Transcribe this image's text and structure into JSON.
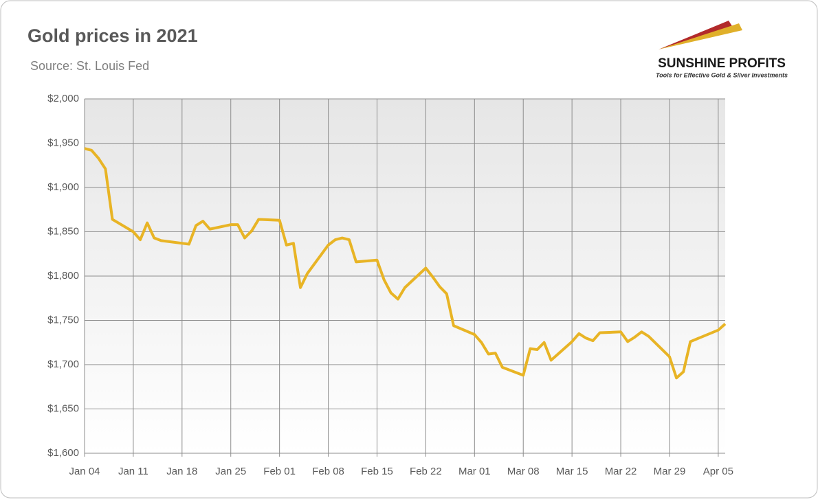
{
  "chart_data": {
    "type": "line",
    "title": "Gold prices in 2021",
    "subtitle": "Source: St. Louis Fed",
    "x": [
      0,
      1,
      2,
      3,
      4,
      7,
      8,
      9,
      10,
      11,
      15,
      16,
      17,
      18,
      21,
      22,
      23,
      24,
      25,
      28,
      29,
      30,
      31,
      32,
      35,
      36,
      37,
      38,
      39,
      42,
      43,
      44,
      45,
      46,
      49,
      50,
      51,
      52,
      53,
      56,
      57,
      58,
      59,
      60,
      63,
      64,
      65,
      66,
      67,
      70,
      71,
      72,
      73,
      74,
      77,
      78,
      79,
      80,
      81,
      84,
      85,
      86,
      87,
      91,
      92
    ],
    "series": [
      {
        "name": "Gold price",
        "color": "#e8b425",
        "values": [
          1944,
          1942,
          1933,
          1921,
          1864,
          1850,
          1841,
          1860,
          1843,
          1840,
          1836,
          1857,
          1862,
          1853,
          1858,
          1858,
          1843,
          1851,
          1864,
          1863,
          1835,
          1837,
          1787,
          1803,
          1835,
          1841,
          1843,
          1841,
          1816,
          1818,
          1796,
          1781,
          1774,
          1787,
          1809,
          1799,
          1788,
          1780,
          1744,
          1734,
          1725,
          1712,
          1713,
          1697,
          1688,
          1718,
          1717,
          1725,
          1705,
          1726,
          1735,
          1730,
          1727,
          1736,
          1737,
          1726,
          1731,
          1737,
          1732,
          1709,
          1685,
          1692,
          1726,
          1739,
          1746
        ]
      }
    ],
    "xlim": [
      0,
      92
    ],
    "xticks": [
      {
        "value": 0,
        "label": "Jan 04"
      },
      {
        "value": 7,
        "label": "Jan 11"
      },
      {
        "value": 14,
        "label": "Jan 18"
      },
      {
        "value": 21,
        "label": "Jan 25"
      },
      {
        "value": 28,
        "label": "Feb 01"
      },
      {
        "value": 35,
        "label": "Feb 08"
      },
      {
        "value": 42,
        "label": "Feb 15"
      },
      {
        "value": 49,
        "label": "Feb 22"
      },
      {
        "value": 56,
        "label": "Mar 01"
      },
      {
        "value": 63,
        "label": "Mar 08"
      },
      {
        "value": 70,
        "label": "Mar 15"
      },
      {
        "value": 77,
        "label": "Mar 22"
      },
      {
        "value": 84,
        "label": "Mar 29"
      },
      {
        "value": 91,
        "label": "Apr 05"
      }
    ],
    "ylim": [
      1600,
      2000
    ],
    "yticks": [
      {
        "value": 1600,
        "label": "$1,600"
      },
      {
        "value": 1650,
        "label": "$1,650"
      },
      {
        "value": 1700,
        "label": "$1,700"
      },
      {
        "value": 1750,
        "label": "$1,750"
      },
      {
        "value": 1800,
        "label": "$1,800"
      },
      {
        "value": 1850,
        "label": "$1,850"
      },
      {
        "value": 1900,
        "label": "$1,900"
      },
      {
        "value": 1950,
        "label": "$1,950"
      },
      {
        "value": 2000,
        "label": "$2,000"
      }
    ],
    "grid": true
  },
  "logo": {
    "name": "SUNSHINE PROFITS",
    "tagline": "Tools for Effective Gold & Silver Investments"
  }
}
